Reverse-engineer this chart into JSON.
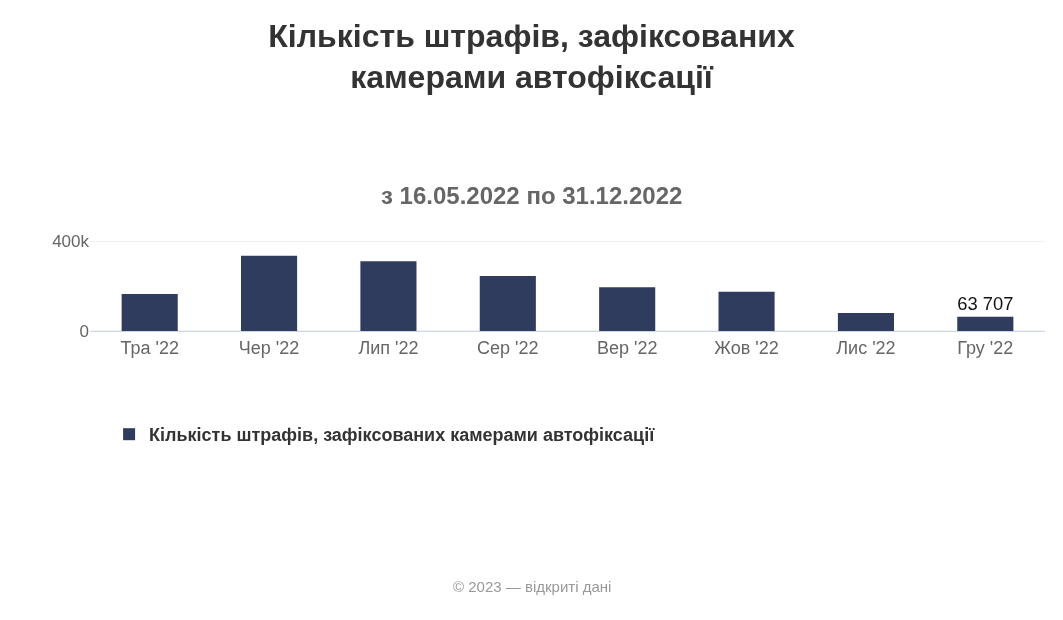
{
  "chart_data": {
    "type": "bar",
    "title": "Кількість штрафів, зафіксованих\nкамерами автофіксації",
    "subtitle": "з 16.05.2022 по 31.12.2022",
    "categories": [
      "Тра '22",
      "Чер '22",
      "Лип '22",
      "Сер '22",
      "Вер '22",
      "Жов '22",
      "Лис '22",
      "Гру '22"
    ],
    "series": [
      {
        "name": "Кількість штрафів, зафіксованих камерами автофіксації",
        "color": "#2f3c5e",
        "values": [
          165000,
          335000,
          310000,
          245000,
          195000,
          175000,
          80000,
          63707
        ],
        "value_labels": [
          null,
          null,
          null,
          null,
          null,
          null,
          null,
          "63 707"
        ]
      }
    ],
    "ylim": [
      0,
      400000
    ],
    "yticks": [
      0,
      {
        "value": 400000,
        "label": "400k"
      }
    ],
    "grid": "y",
    "legend": "bottom",
    "annotations": [
      "© 2023 — відкриті дані"
    ]
  }
}
